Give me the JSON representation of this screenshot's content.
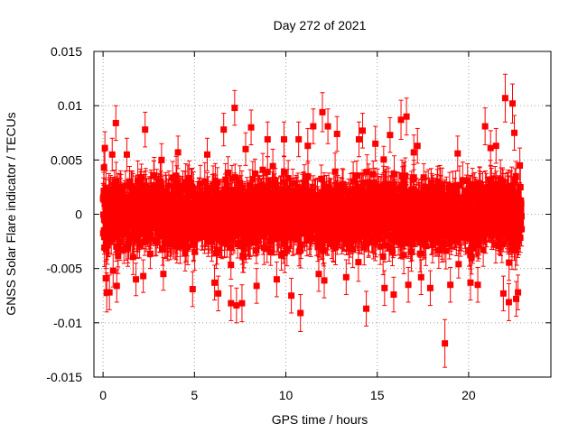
{
  "chart_data": {
    "type": "scatter",
    "title": "Day 272 of 2021",
    "xlabel": "GPS time / hours",
    "ylabel": "GNSS Solar Flare indicator / TECUs",
    "xlim": [
      -0.5,
      24.5
    ],
    "ylim": [
      -0.015,
      0.015
    ],
    "xticks": [
      0,
      5,
      10,
      15,
      20
    ],
    "xtick_labels": [
      "0",
      "5",
      "10",
      "15",
      "20"
    ],
    "yticks": [
      -0.015,
      -0.01,
      -0.005,
      0,
      0.005,
      0.01,
      0.015
    ],
    "ytick_labels": [
      "-0.015",
      "-0.01",
      "-0.005",
      "0",
      "0.005",
      "0.01",
      "0.015"
    ],
    "grid": true,
    "legend": "none",
    "marker": "square",
    "error_bars": true,
    "color": "#ff0000",
    "series": [
      {
        "x_range": [
          0,
          22.9
        ],
        "sample_interval_hours": 0.00833,
        "typical_spread": 0.0025,
        "typical_error": 0.0015,
        "points": [
          {
            "x": 0.05,
            "y": 0.0043,
            "err": 0.0015
          },
          {
            "x": 0.1,
            "y": 0.0061,
            "err": 0.0015
          },
          {
            "x": 0.15,
            "y": -0.0059,
            "err": 0.0016
          },
          {
            "x": 0.2,
            "y": -0.0072,
            "err": 0.0018
          },
          {
            "x": 0.35,
            "y": -0.0072,
            "err": 0.0016
          },
          {
            "x": 0.5,
            "y": 0.0055,
            "err": 0.0015
          },
          {
            "x": 0.55,
            "y": -0.0052,
            "err": 0.0015
          },
          {
            "x": 0.7,
            "y": 0.0084,
            "err": 0.0016
          },
          {
            "x": 0.75,
            "y": -0.0066,
            "err": 0.0015
          },
          {
            "x": 1.3,
            "y": 0.0055,
            "err": 0.0015
          },
          {
            "x": 1.8,
            "y": -0.006,
            "err": 0.0015
          },
          {
            "x": 2.2,
            "y": -0.0057,
            "err": 0.0015
          },
          {
            "x": 2.3,
            "y": 0.0078,
            "err": 0.0016
          },
          {
            "x": 3.2,
            "y": 0.005,
            "err": 0.0015
          },
          {
            "x": 3.3,
            "y": -0.0055,
            "err": 0.0015
          },
          {
            "x": 4.1,
            "y": 0.0057,
            "err": 0.0015
          },
          {
            "x": 4.9,
            "y": -0.0069,
            "err": 0.0016
          },
          {
            "x": 5.7,
            "y": 0.0055,
            "err": 0.0015
          },
          {
            "x": 6.1,
            "y": -0.0063,
            "err": 0.0016
          },
          {
            "x": 6.3,
            "y": -0.0073,
            "err": 0.0016
          },
          {
            "x": 6.6,
            "y": 0.0078,
            "err": 0.0015
          },
          {
            "x": 7.0,
            "y": -0.0082,
            "err": 0.0016
          },
          {
            "x": 7.2,
            "y": 0.0098,
            "err": 0.0016
          },
          {
            "x": 7.3,
            "y": -0.0084,
            "err": 0.0016
          },
          {
            "x": 7.6,
            "y": -0.0082,
            "err": 0.0017
          },
          {
            "x": 7.8,
            "y": 0.006,
            "err": 0.0015
          },
          {
            "x": 8.1,
            "y": 0.008,
            "err": 0.0016
          },
          {
            "x": 8.4,
            "y": -0.0066,
            "err": 0.0016
          },
          {
            "x": 9.0,
            "y": 0.0069,
            "err": 0.0016
          },
          {
            "x": 9.5,
            "y": -0.006,
            "err": 0.0016
          },
          {
            "x": 9.9,
            "y": 0.0069,
            "err": 0.0016
          },
          {
            "x": 10.3,
            "y": -0.0075,
            "err": 0.0016
          },
          {
            "x": 10.7,
            "y": 0.0069,
            "err": 0.0016
          },
          {
            "x": 10.8,
            "y": -0.0091,
            "err": 0.0017
          },
          {
            "x": 11.2,
            "y": 0.0063,
            "err": 0.0016
          },
          {
            "x": 11.5,
            "y": 0.0081,
            "err": 0.0016
          },
          {
            "x": 11.8,
            "y": -0.0055,
            "err": 0.0016
          },
          {
            "x": 12.0,
            "y": 0.0094,
            "err": 0.0018
          },
          {
            "x": 12.1,
            "y": -0.0061,
            "err": 0.0016
          },
          {
            "x": 12.3,
            "y": 0.0081,
            "err": 0.0016
          },
          {
            "x": 12.8,
            "y": 0.0074,
            "err": 0.0016
          },
          {
            "x": 13.3,
            "y": -0.0058,
            "err": 0.0016
          },
          {
            "x": 14.0,
            "y": 0.0069,
            "err": 0.0016
          },
          {
            "x": 14.2,
            "y": 0.0077,
            "err": 0.0016
          },
          {
            "x": 14.4,
            "y": -0.0087,
            "err": 0.0016
          },
          {
            "x": 14.9,
            "y": 0.0065,
            "err": 0.0016
          },
          {
            "x": 15.4,
            "y": -0.0068,
            "err": 0.0016
          },
          {
            "x": 15.7,
            "y": 0.0073,
            "err": 0.0016
          },
          {
            "x": 15.9,
            "y": -0.0074,
            "err": 0.0016
          },
          {
            "x": 16.3,
            "y": 0.0087,
            "err": 0.0018
          },
          {
            "x": 16.6,
            "y": 0.009,
            "err": 0.0017
          },
          {
            "x": 16.7,
            "y": -0.0065,
            "err": 0.0016
          },
          {
            "x": 17.0,
            "y": 0.0057,
            "err": 0.0016
          },
          {
            "x": 17.2,
            "y": 0.0063,
            "err": 0.0016
          },
          {
            "x": 17.4,
            "y": -0.0058,
            "err": 0.0016
          },
          {
            "x": 17.9,
            "y": -0.0068,
            "err": 0.0016
          },
          {
            "x": 18.7,
            "y": -0.0119,
            "err": 0.0022
          },
          {
            "x": 19.0,
            "y": -0.0065,
            "err": 0.0016
          },
          {
            "x": 19.4,
            "y": 0.0056,
            "err": 0.0016
          },
          {
            "x": 20.1,
            "y": -0.0063,
            "err": 0.0016
          },
          {
            "x": 20.5,
            "y": -0.0065,
            "err": 0.0016
          },
          {
            "x": 20.9,
            "y": 0.0081,
            "err": 0.0017
          },
          {
            "x": 21.2,
            "y": 0.0061,
            "err": 0.0016
          },
          {
            "x": 21.5,
            "y": 0.0063,
            "err": 0.0016
          },
          {
            "x": 21.9,
            "y": -0.0073,
            "err": 0.0016
          },
          {
            "x": 22.0,
            "y": 0.0107,
            "err": 0.0022
          },
          {
            "x": 22.2,
            "y": -0.0081,
            "err": 0.0017
          },
          {
            "x": 22.4,
            "y": 0.0102,
            "err": 0.0018
          },
          {
            "x": 22.5,
            "y": 0.0075,
            "err": 0.0016
          },
          {
            "x": 22.6,
            "y": -0.0078,
            "err": 0.0016
          },
          {
            "x": 22.7,
            "y": -0.0072,
            "err": 0.0016
          },
          {
            "x": 22.8,
            "y": 0.0045,
            "err": 0.0016
          }
        ]
      }
    ]
  }
}
